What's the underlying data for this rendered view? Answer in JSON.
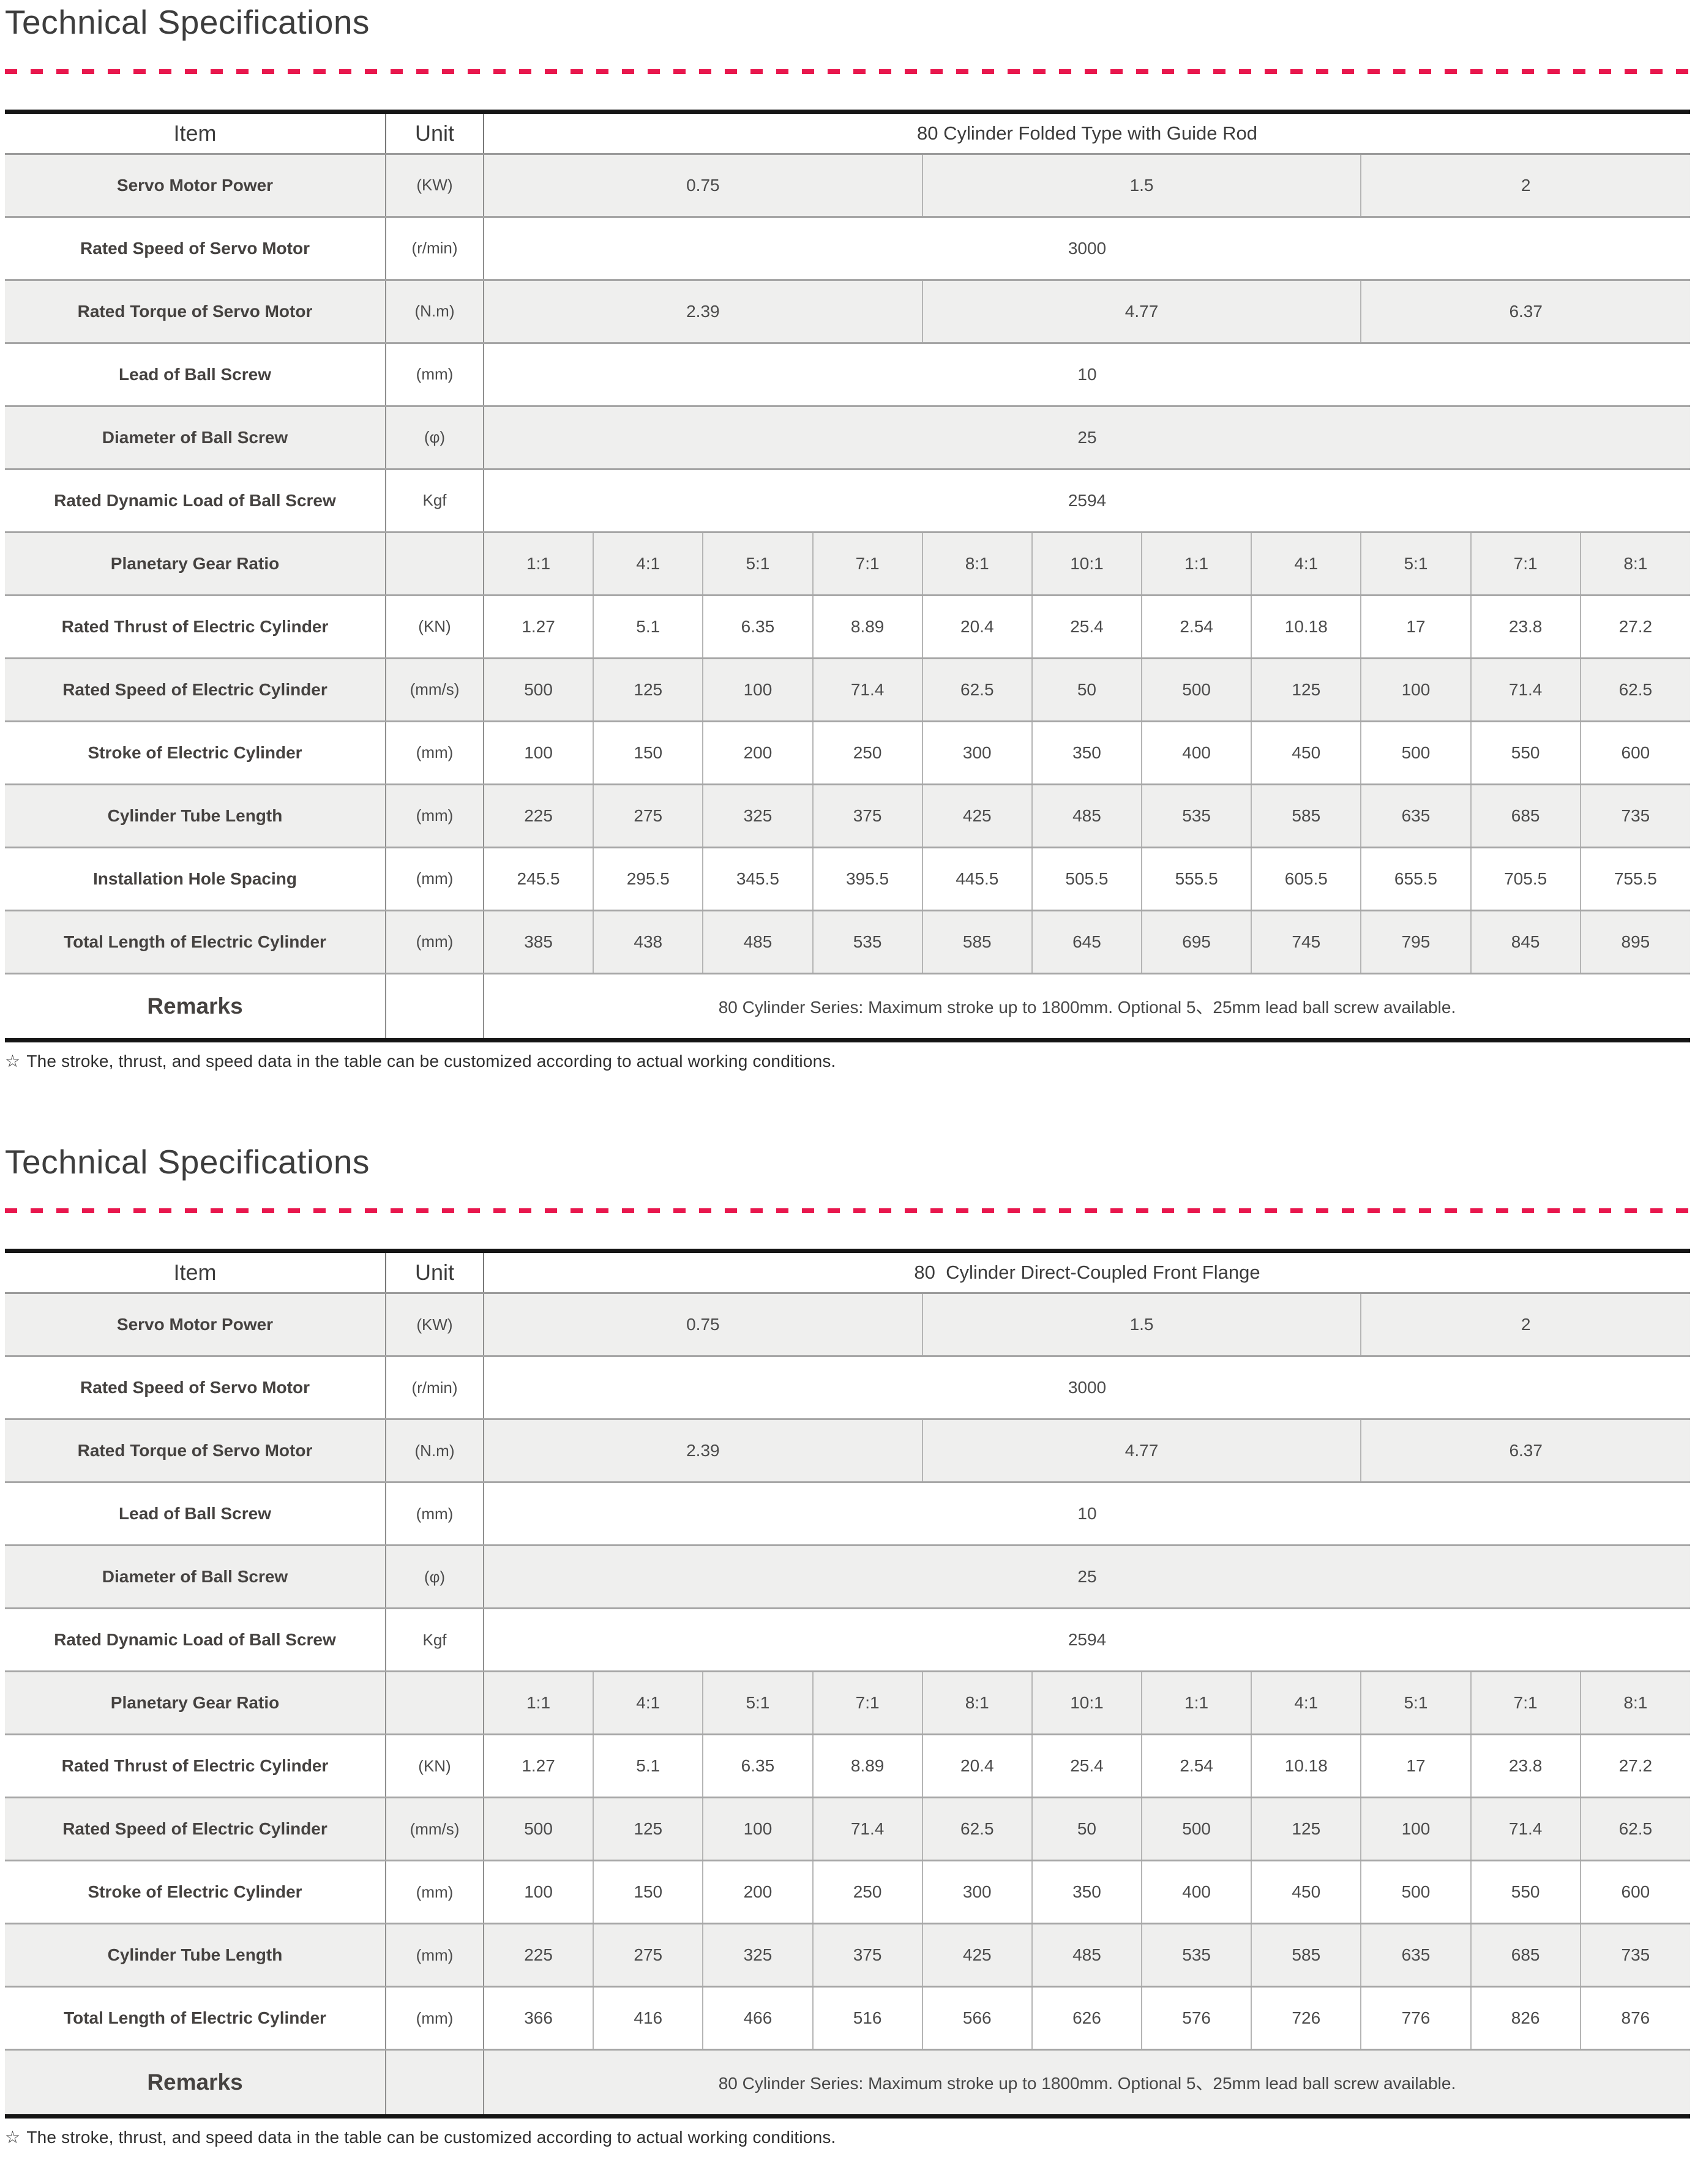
{
  "page": {
    "accent_color": "#E8174D",
    "title_color": "#3D3D3D"
  },
  "sections": [
    {
      "title": "Technical Specifications",
      "footnote": {
        "star": "☆",
        "text": "The stroke, thrust, and speed data in the table can be customized according to actual working conditions."
      },
      "table": {
        "columns": {
          "item": "Item",
          "unit": "Unit",
          "group": "80 Cylinder Folded Type with Guide Rod"
        },
        "rows": [
          {
            "label": "Servo Motor Power",
            "unit": "(KW)",
            "shaded": true,
            "cells": [
              {
                "text": "0.75",
                "span": 4
              },
              {
                "text": "1.5",
                "span": 4
              },
              {
                "text": "2",
                "span": 3
              }
            ]
          },
          {
            "label": "Rated Speed of Servo Motor",
            "unit": "(r/min)",
            "shaded": false,
            "cells": [
              {
                "text": "3000",
                "span": 11
              }
            ]
          },
          {
            "label": "Rated Torque of Servo Motor",
            "unit": "(N.m)",
            "shaded": true,
            "cells": [
              {
                "text": "2.39",
                "span": 4
              },
              {
                "text": "4.77",
                "span": 4
              },
              {
                "text": "6.37",
                "span": 3
              }
            ]
          },
          {
            "label": "Lead of Ball Screw",
            "unit": "(mm)",
            "shaded": false,
            "cells": [
              {
                "text": "10",
                "span": 11
              }
            ]
          },
          {
            "label": "Diameter of Ball Screw",
            "unit": "(φ)",
            "shaded": true,
            "cells": [
              {
                "text": "25",
                "span": 11
              }
            ]
          },
          {
            "label": "Rated Dynamic Load of Ball Screw",
            "unit": "Kgf",
            "shaded": false,
            "cells": [
              {
                "text": "2594",
                "span": 11
              }
            ]
          },
          {
            "label": "Planetary Gear Ratio",
            "unit": "",
            "shaded": true,
            "values": [
              "1:1",
              "4:1",
              "5:1",
              "7:1",
              "8:1",
              "10:1",
              "1:1",
              "4:1",
              "5:1",
              "7:1",
              "8:1"
            ]
          },
          {
            "label": "Rated Thrust of Electric Cylinder",
            "unit": "(KN)",
            "shaded": false,
            "values": [
              "1.27",
              "5.1",
              "6.35",
              "8.89",
              "20.4",
              "25.4",
              "2.54",
              "10.18",
              "17",
              "23.8",
              "27.2"
            ]
          },
          {
            "label": "Rated Speed of Electric Cylinder",
            "unit": "(mm/s)",
            "shaded": true,
            "values": [
              "500",
              "125",
              "100",
              "71.4",
              "62.5",
              "50",
              "500",
              "125",
              "100",
              "71.4",
              "62.5"
            ]
          },
          {
            "label": "Stroke of Electric Cylinder",
            "unit": "(mm)",
            "shaded": false,
            "values": [
              "100",
              "150",
              "200",
              "250",
              "300",
              "350",
              "400",
              "450",
              "500",
              "550",
              "600"
            ]
          },
          {
            "label": "Cylinder Tube Length",
            "unit": "(mm)",
            "shaded": true,
            "values": [
              "225",
              "275",
              "325",
              "375",
              "425",
              "485",
              "535",
              "585",
              "635",
              "685",
              "735"
            ]
          },
          {
            "label": "Installation Hole Spacing",
            "unit": "(mm)",
            "shaded": false,
            "values": [
              "245.5",
              "295.5",
              "345.5",
              "395.5",
              "445.5",
              "505.5",
              "555.5",
              "605.5",
              "655.5",
              "705.5",
              "755.5"
            ]
          },
          {
            "label": "Total Length of Electric Cylinder",
            "unit": "(mm)",
            "shaded": true,
            "values": [
              "385",
              "438",
              "485",
              "535",
              "585",
              "645",
              "695",
              "745",
              "795",
              "845",
              "895"
            ]
          }
        ],
        "remarks": {
          "label": "Remarks",
          "shaded": false,
          "text": "80 Cylinder Series: Maximum stroke up to 1800mm. Optional 5、25mm lead ball screw available."
        }
      }
    },
    {
      "title": "Technical Specifications",
      "footnote": {
        "star": "☆",
        "text": "The stroke, thrust, and speed data in the table can be customized according to actual working conditions."
      },
      "table": {
        "columns": {
          "item": "Item",
          "unit": "Unit",
          "group": "80  Cylinder Direct-Coupled Front Flange"
        },
        "rows": [
          {
            "label": "Servo Motor Power",
            "unit": "(KW)",
            "shaded": true,
            "cells": [
              {
                "text": "0.75",
                "span": 4
              },
              {
                "text": "1.5",
                "span": 4
              },
              {
                "text": "2",
                "span": 3
              }
            ]
          },
          {
            "label": "Rated Speed of Servo Motor",
            "unit": "(r/min)",
            "shaded": false,
            "cells": [
              {
                "text": "3000",
                "span": 11
              }
            ]
          },
          {
            "label": "Rated Torque of Servo Motor",
            "unit": "(N.m)",
            "shaded": true,
            "cells": [
              {
                "text": "2.39",
                "span": 4
              },
              {
                "text": "4.77",
                "span": 4
              },
              {
                "text": "6.37",
                "span": 3
              }
            ]
          },
          {
            "label": "Lead of Ball Screw",
            "unit": "(mm)",
            "shaded": false,
            "cells": [
              {
                "text": "10",
                "span": 11
              }
            ]
          },
          {
            "label": "Diameter of Ball Screw",
            "unit": "(φ)",
            "shaded": true,
            "cells": [
              {
                "text": "25",
                "span": 11
              }
            ]
          },
          {
            "label": "Rated Dynamic Load of Ball Screw",
            "unit": "Kgf",
            "shaded": false,
            "cells": [
              {
                "text": "2594",
                "span": 11
              }
            ]
          },
          {
            "label": "Planetary Gear Ratio",
            "unit": "",
            "shaded": true,
            "values": [
              "1:1",
              "4:1",
              "5:1",
              "7:1",
              "8:1",
              "10:1",
              "1:1",
              "4:1",
              "5:1",
              "7:1",
              "8:1"
            ]
          },
          {
            "label": "Rated Thrust of Electric Cylinder",
            "unit": "(KN)",
            "shaded": false,
            "values": [
              "1.27",
              "5.1",
              "6.35",
              "8.89",
              "20.4",
              "25.4",
              "2.54",
              "10.18",
              "17",
              "23.8",
              "27.2"
            ]
          },
          {
            "label": "Rated Speed of Electric Cylinder",
            "unit": "(mm/s)",
            "shaded": true,
            "values": [
              "500",
              "125",
              "100",
              "71.4",
              "62.5",
              "50",
              "500",
              "125",
              "100",
              "71.4",
              "62.5"
            ]
          },
          {
            "label": "Stroke of Electric Cylinder",
            "unit": "(mm)",
            "shaded": false,
            "values": [
              "100",
              "150",
              "200",
              "250",
              "300",
              "350",
              "400",
              "450",
              "500",
              "550",
              "600"
            ]
          },
          {
            "label": "Cylinder Tube Length",
            "unit": "(mm)",
            "shaded": true,
            "values": [
              "225",
              "275",
              "325",
              "375",
              "425",
              "485",
              "535",
              "585",
              "635",
              "685",
              "735"
            ]
          },
          {
            "label": "Total Length of Electric Cylinder",
            "unit": "(mm)",
            "shaded": false,
            "values": [
              "366",
              "416",
              "466",
              "516",
              "566",
              "626",
              "576",
              "726",
              "776",
              "826",
              "876"
            ]
          }
        ],
        "remarks": {
          "label": "Remarks",
          "shaded": true,
          "text": "80 Cylinder Series: Maximum stroke up to 1800mm. Optional 5、25mm lead ball screw available."
        }
      }
    }
  ]
}
